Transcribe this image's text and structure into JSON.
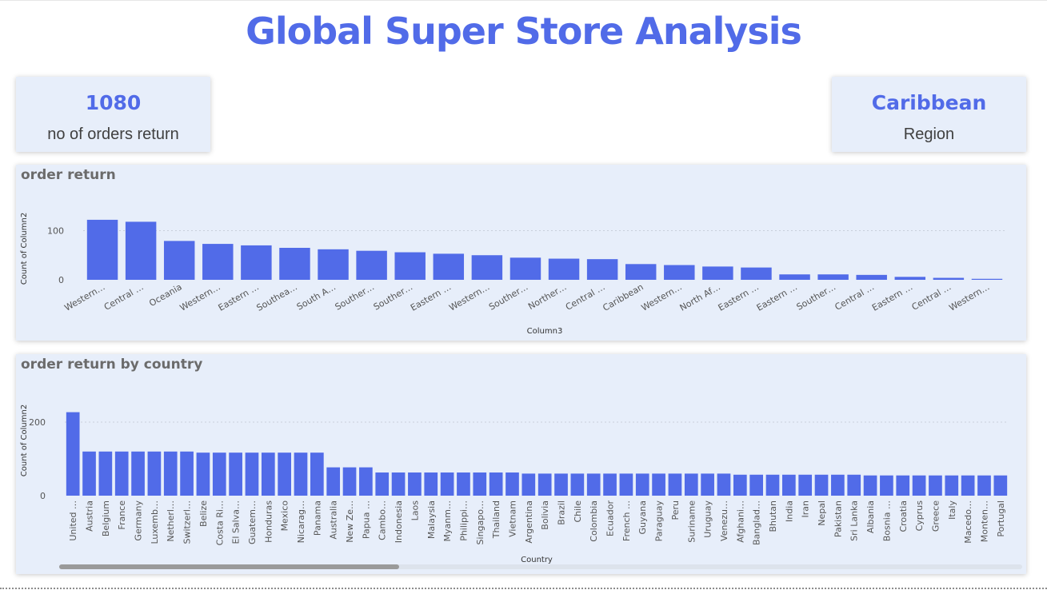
{
  "page": {
    "title": "Global Super Store Analysis"
  },
  "colors": {
    "accent": "#516be8",
    "card_bg": "#e7eefa",
    "title_gray": "#6b6b6b"
  },
  "kpi_returns": {
    "value": "1080",
    "label": "no of orders return"
  },
  "kpi_region": {
    "value": "Caribbean",
    "label": "Region"
  },
  "chart_data": [
    {
      "type": "bar",
      "title": "order return",
      "xlabel": "Column3",
      "ylabel": "Count of Column2",
      "ylim": [
        0,
        130
      ],
      "yticks": [
        0,
        100
      ],
      "grid": true,
      "categories": [
        "Western…",
        "Central …",
        "Oceania",
        "Western…",
        "Eastern …",
        "Southea…",
        "South A…",
        "Souther…",
        "Souther…",
        "Eastern …",
        "Western…",
        "Souther…",
        "Norther…",
        "Central …",
        "Caribbean",
        "Western…",
        "North Af…",
        "Eastern …",
        "Eastern …",
        "Souther…",
        "Central …",
        "Eastern …",
        "Central …",
        "Western…"
      ],
      "values": [
        122,
        118,
        79,
        73,
        70,
        65,
        62,
        59,
        56,
        53,
        50,
        45,
        43,
        42,
        32,
        30,
        27,
        25,
        11,
        11,
        10,
        6,
        4,
        2
      ]
    },
    {
      "type": "bar",
      "title": "order return by country",
      "xlabel": "Country",
      "ylabel": "Count of Column2",
      "ylim": [
        0,
        250
      ],
      "yticks": [
        0,
        200
      ],
      "grid": true,
      "categories": [
        "United …",
        "Austria",
        "Belgium",
        "France",
        "Germany",
        "Luxemb…",
        "Netherl…",
        "Switzerl…",
        "Belize",
        "Costa Ri…",
        "El Salva…",
        "Guatem…",
        "Honduras",
        "Mexico",
        "Nicarag…",
        "Panama",
        "Australia",
        "New Ze…",
        "Papua …",
        "Cambo…",
        "Indonesia",
        "Laos",
        "Malaysia",
        "Myanm…",
        "Philippi…",
        "Singapo…",
        "Thailand",
        "Vietnam",
        "Argentina",
        "Bolivia",
        "Brazil",
        "Chile",
        "Colombia",
        "Ecuador",
        "French …",
        "Guyana",
        "Paraguay",
        "Peru",
        "Suriname",
        "Uruguay",
        "Venezu…",
        "Afghani…",
        "Banglad…",
        "Bhutan",
        "India",
        "Iran",
        "Nepal",
        "Pakistan",
        "Sri Lanka",
        "Albania",
        "Bosnia …",
        "Croatia",
        "Cyprus",
        "Greece",
        "Italy",
        "Macedo…",
        "Monten…",
        "Portugal"
      ],
      "values": [
        227,
        120,
        120,
        120,
        120,
        120,
        120,
        120,
        117,
        117,
        117,
        117,
        117,
        117,
        117,
        117,
        77,
        77,
        77,
        63,
        63,
        63,
        63,
        63,
        63,
        63,
        63,
        63,
        60,
        60,
        60,
        60,
        60,
        60,
        60,
        60,
        60,
        60,
        60,
        60,
        60,
        57,
        57,
        57,
        57,
        57,
        57,
        57,
        57,
        55,
        55,
        55,
        55,
        55,
        55,
        55,
        55,
        55
      ]
    }
  ]
}
